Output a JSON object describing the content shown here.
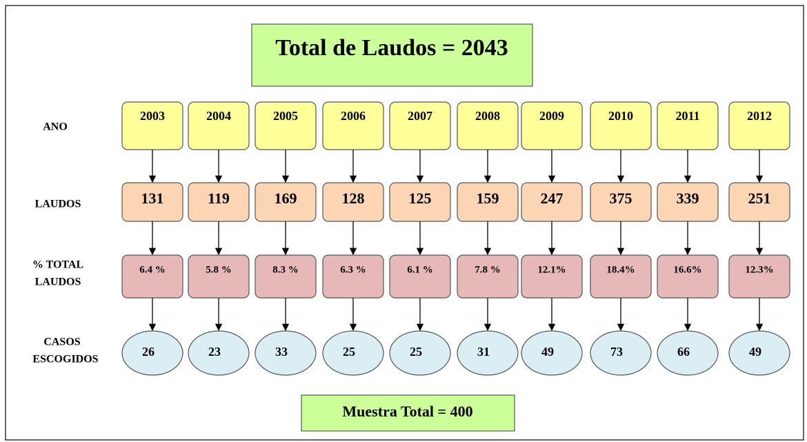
{
  "title": "Total de Laudos = 2043",
  "row_labels": {
    "year": "ANO",
    "laudos": "LAUDOS",
    "percent": [
      "% TOTAL",
      "LAUDOS"
    ],
    "casos": [
      "CASOS",
      "ESCOGIDOS"
    ]
  },
  "columns": [
    {
      "year": 2003,
      "laudos": 131,
      "percent": "6.4 %",
      "casos": 26
    },
    {
      "year": 2004,
      "laudos": 119,
      "percent": "5.8 %",
      "casos": 23
    },
    {
      "year": 2005,
      "laudos": 169,
      "percent": "8.3 %",
      "casos": 33
    },
    {
      "year": 2006,
      "laudos": 128,
      "percent": "6.3 %",
      "casos": 25
    },
    {
      "year": 2007,
      "laudos": 125,
      "percent": "6.1 %",
      "casos": 25
    },
    {
      "year": 2008,
      "laudos": 159,
      "percent": "7.8 %",
      "casos": 31
    },
    {
      "year": 2009,
      "laudos": 247,
      "percent": "12.1%",
      "casos": 49
    },
    {
      "year": 2010,
      "laudos": 375,
      "percent": "18.4%",
      "casos": 73
    },
    {
      "year": 2011,
      "laudos": 339,
      "percent": "16.6%",
      "casos": 66
    },
    {
      "year": 2012,
      "laudos": 251,
      "percent": "12.3%",
      "casos": 49
    }
  ],
  "footer": "Muestra Total  = 400"
}
